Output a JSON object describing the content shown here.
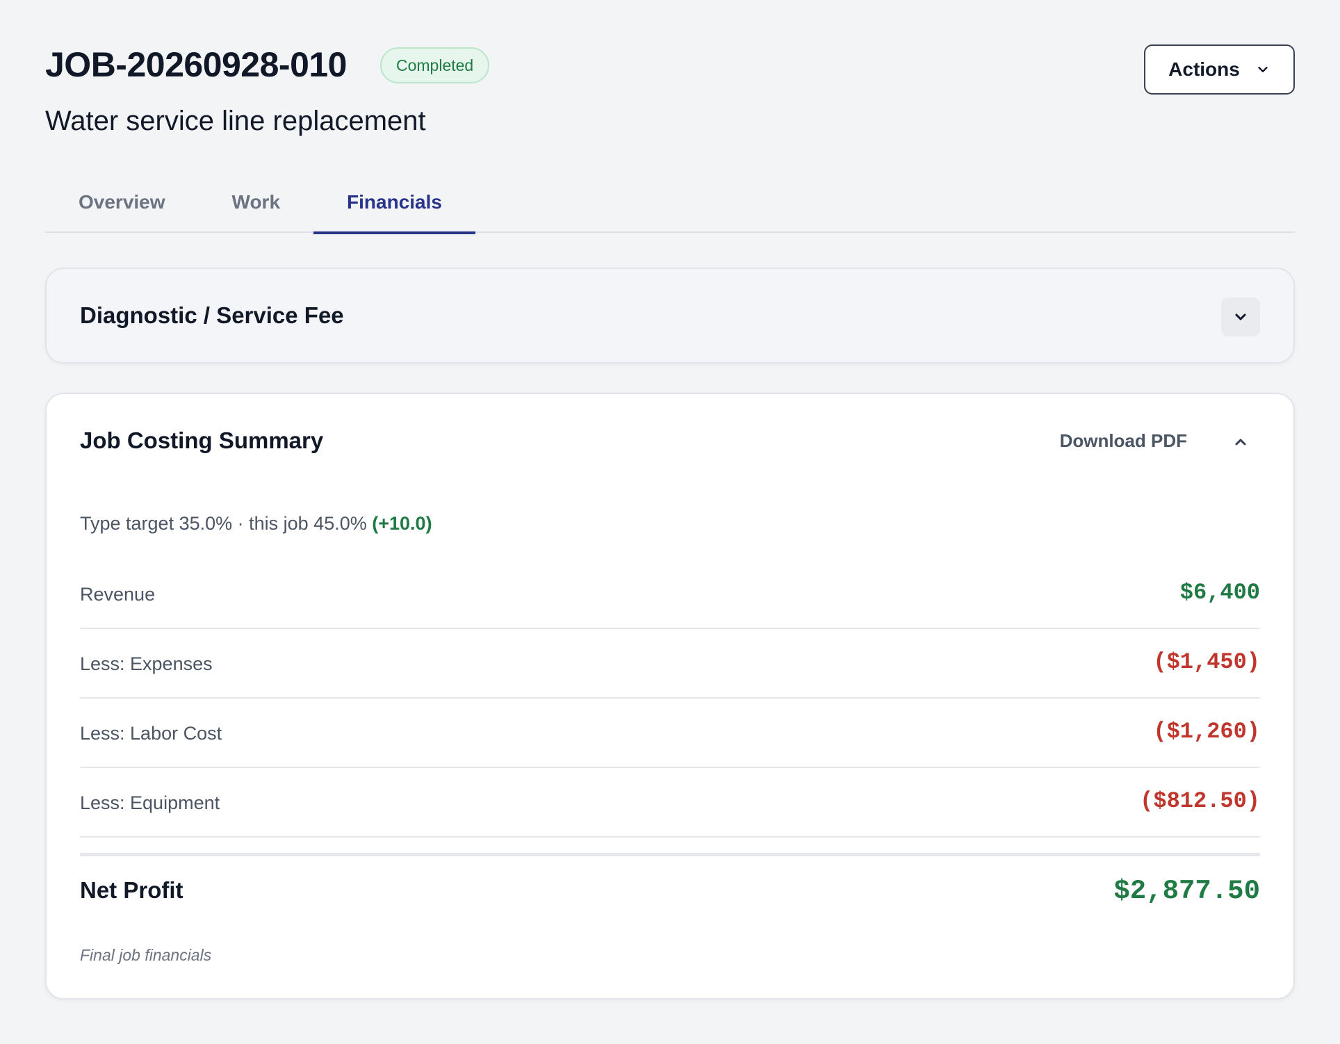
{
  "header": {
    "job_id": "JOB-20260928-010",
    "status": "Completed",
    "subtitle": "Water service line replacement",
    "actions_label": "Actions"
  },
  "tabs": [
    {
      "label": "Overview",
      "active": false
    },
    {
      "label": "Work",
      "active": false
    },
    {
      "label": "Financials",
      "active": true
    }
  ],
  "service_fee": {
    "title": "Diagnostic / Service Fee",
    "expanded": false
  },
  "job_costing": {
    "title": "Job Costing Summary",
    "download_label": "Download PDF",
    "expanded": true,
    "target_text": "Type target 35.0% · this job 45.0%",
    "target_delta": "(+10.0)",
    "rows": [
      {
        "label": "Revenue",
        "value": "$6,400",
        "sign": "positive"
      },
      {
        "label": "Less: Expenses",
        "value": "($1,450)",
        "sign": "negative"
      },
      {
        "label": "Less: Labor Cost",
        "value": "($1,260)",
        "sign": "negative"
      },
      {
        "label": "Less: Equipment",
        "value": "($812.50)",
        "sign": "negative"
      }
    ],
    "net_label": "Net Profit",
    "net_value": "$2,877.50",
    "footnote": "Final job financials"
  },
  "colors": {
    "accent": "#27338a",
    "positive": "#1f7a44",
    "negative": "#c0362c",
    "badge_bg": "#e6f6ec"
  },
  "icons": {
    "actions": "chevron-down-icon",
    "service_fee_toggle": "chevron-down-icon",
    "job_costing_toggle": "chevron-up-icon"
  }
}
